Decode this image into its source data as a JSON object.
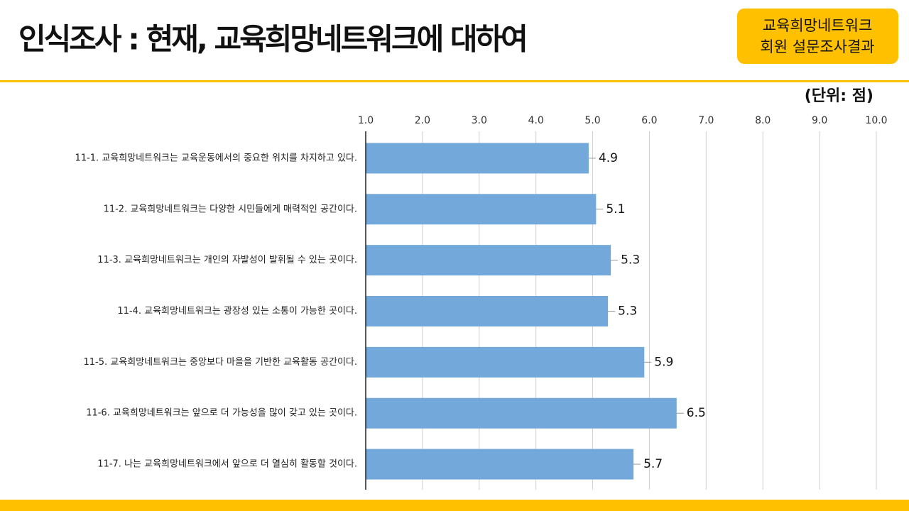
{
  "chart_data": {
    "type": "bar",
    "orientation": "horizontal",
    "title": "인식조사 : 현재, 교육희망네트워크에 대하여",
    "badge": [
      "교육희망네트워크",
      "회원 설문조사결과"
    ],
    "unit_label": "(단위:  점)",
    "categories": [
      "11-1. 교육희망네트워크는 교육운동에서의 중요한 위치를 차지하고 있다.",
      "11-2. 교육희망네트워크는 다양한 시민들에게 매력적인 공간이다.",
      "11-3. 교육희망네트워크는 개인의 자발성이 발휘될 수 있는 곳이다.",
      "11-4. 교육희망네트워크는 광장성 있는 소통이 가능한 곳이다.",
      "11-5. 교육희망네트워크는 중앙보다 마을을 기반한 교육활동 공간이다.",
      "11-6. 교육희망네트워크는 앞으로 더 가능성을 많이 갖고 있는 곳이다.",
      "11-7. 나는 교육희망네트워크에서 앞으로 더 열심히 활동할 것이다."
    ],
    "values": [
      4.93,
      5.06,
      5.32,
      5.27,
      5.91,
      6.48,
      5.72
    ],
    "value_labels": [
      "4.9",
      "5.1",
      "5.3",
      "5.3",
      "5.9",
      "6.5",
      "5.7"
    ],
    "color": "#72a8da",
    "xlim": [
      1,
      10
    ],
    "xticks": [
      {
        "value": 1,
        "label": "1.0"
      },
      {
        "value": 2,
        "label": "2.0"
      },
      {
        "value": 3,
        "label": "3.0"
      },
      {
        "value": 4,
        "label": "4.0"
      },
      {
        "value": 5,
        "label": "5.0"
      },
      {
        "value": 6,
        "label": "6.0"
      },
      {
        "value": 7,
        "label": "7.0"
      },
      {
        "value": 8,
        "label": "8.0"
      },
      {
        "value": 9,
        "label": "9.0"
      },
      {
        "value": 10,
        "label": "10.0"
      }
    ],
    "grid": true
  }
}
